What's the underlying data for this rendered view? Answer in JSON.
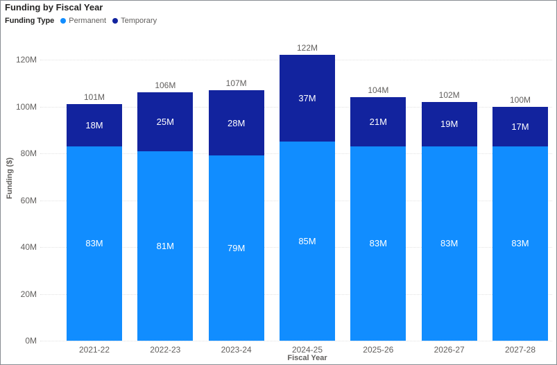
{
  "title": "Funding by Fiscal Year",
  "legend": {
    "label": "Funding Type"
  },
  "colors": {
    "permanent": "#118DFF",
    "temporary": "#12239E",
    "title_text": "#252423",
    "axis_text": "#605E5C",
    "grid": "#E2E2E2",
    "border": "#878b91",
    "background": "#FFFFFF",
    "bar_label_text": "#FFFFFF"
  },
  "chart_data": {
    "type": "bar",
    "stacked": true,
    "title": "Funding by Fiscal Year",
    "categories": [
      "2021-22",
      "2022-23",
      "2023-24",
      "2024-25",
      "2025-26",
      "2026-27",
      "2027-28"
    ],
    "series": [
      {
        "name": "Permanent",
        "color": "#118DFF",
        "values": [
          83,
          81,
          79,
          85,
          83,
          83,
          83
        ],
        "labels": [
          "83M",
          "81M",
          "79M",
          "85M",
          "83M",
          "83M",
          "83M"
        ]
      },
      {
        "name": "Temporary",
        "color": "#12239E",
        "values": [
          18,
          25,
          28,
          37,
          21,
          19,
          17
        ],
        "labels": [
          "18M",
          "25M",
          "28M",
          "37M",
          "21M",
          "19M",
          "17M"
        ]
      }
    ],
    "totals": [
      101,
      106,
      107,
      122,
      104,
      102,
      100
    ],
    "total_labels": [
      "101M",
      "106M",
      "107M",
      "122M",
      "104M",
      "102M",
      "100M"
    ],
    "xlabel": "Fiscal Year",
    "ylabel": "Funding ($)",
    "ylim": [
      0,
      120
    ],
    "ytick_step": 20,
    "ytick_labels": [
      "0M",
      "20M",
      "40M",
      "60M",
      "80M",
      "100M",
      "120M"
    ],
    "value_unit": "M",
    "grid": "horizontal-dotted",
    "legend_position": "top-left"
  }
}
